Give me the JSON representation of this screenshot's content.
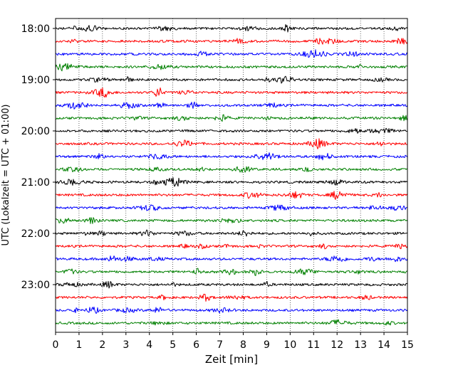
{
  "chart_data": {
    "type": "line",
    "title": "",
    "xlabel": "Zeit  [min]",
    "ylabel": "UTC (Lokalzeit = UTC + 01:00)",
    "xlim": [
      0,
      15
    ],
    "x_ticks": [
      0,
      1,
      2,
      3,
      4,
      5,
      6,
      7,
      8,
      9,
      10,
      11,
      12,
      13,
      14,
      15
    ],
    "x_tick_labels": [
      "0",
      "1",
      "2",
      "3",
      "4",
      "5",
      "6",
      "7",
      "8",
      "9",
      "10",
      "11",
      "12",
      "13",
      "14",
      "15"
    ],
    "y_tick_labels": [
      "18:00",
      "19:00",
      "20:00",
      "21:00",
      "22:00",
      "23:00"
    ],
    "grid": "vertical-dotted",
    "trace_colors": [
      "#000000",
      "#ff0000",
      "#0000ff",
      "#008000"
    ],
    "trace_count": 24,
    "trace_interval_min": 15
  }
}
